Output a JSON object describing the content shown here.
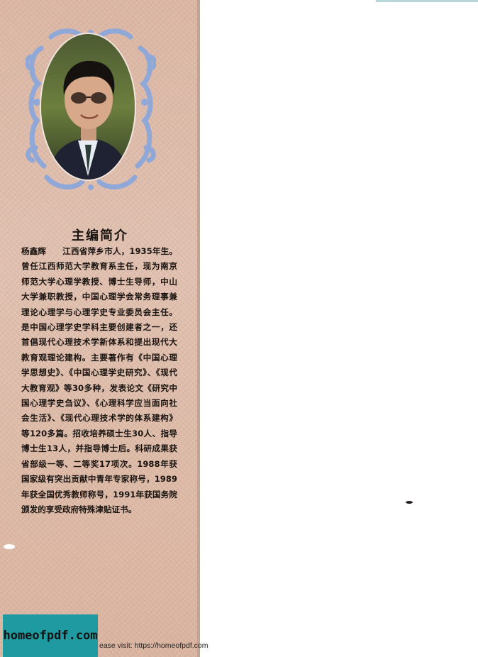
{
  "section_title": "主编简介",
  "bio": {
    "name": "杨鑫辉",
    "text": "江西省萍乡市人，1935年生。曾任江西师范大学教育系主任，现为南京师范大学心理学教授、博士生导师，中山大学兼职教授，中国心理学会常务理事兼理论心理学与心理学史专业委员会主任。是中国心理学史学科主要创建者之一，还首倡现代心理技术学新体系和提出现代大教育观理论建构。主要著作有《中国心理学思想史》、《中国心理学史研究》、《现代大教育观》等30多种，发表论文《研究中国心理学史刍议》、《心理科学应当面向社会生活》、《现代心理技术学的体系建构》等120多篇。招收培养硕士生30人、指导博士生13人，并指导博士后。科研成果获省部级一等、二等奖17项次。1988年获国家级有突出贡献中青年专家称号，1989年获全国优秀教师称号，1991年获国务院颁发的享受政府特殊津贴证书。"
  },
  "watermark": {
    "badge": "homeofpdf.com",
    "visit_text": "ease visit: https://homeofpdf.com"
  },
  "colors": {
    "flap": "#ddb9a7",
    "ornament": "#8fa8d8",
    "badge": "#1f9aa0"
  }
}
